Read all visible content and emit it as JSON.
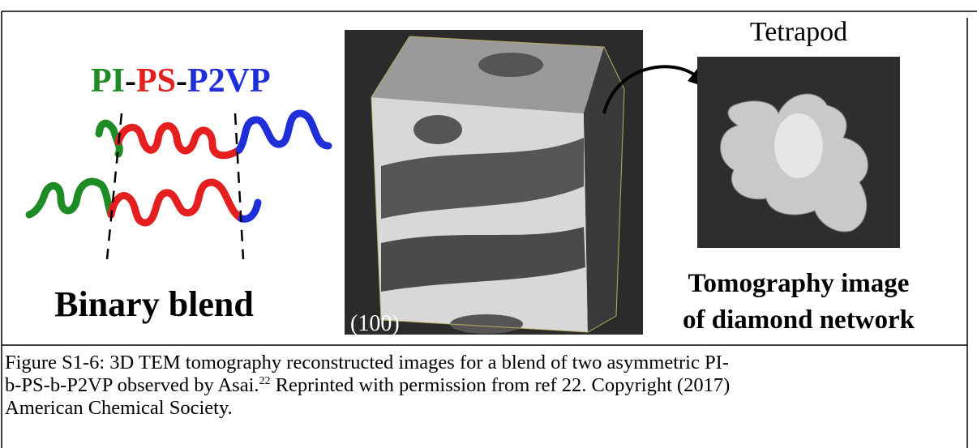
{
  "figure": {
    "polymer_label": {
      "pi": "PI",
      "dash1": "-",
      "ps": "PS",
      "dash2": "-",
      "p2vp": "P2VP"
    },
    "blend_label": "Binary blend",
    "plane_label": "(100)",
    "tetrapod_label": "Tetrapod",
    "tomography_label": {
      "line1": "Tomography image",
      "line2": "of diamond network"
    }
  },
  "caption": {
    "line1": "Figure S1-6: 3D TEM tomography reconstructed images for a blend of two asymmetric PI-",
    "line2_before": "b-PS-b-P2VP observed by Asai.",
    "superscript": "22",
    "line2_after": " Reprinted with permission from ref 22. Copyright (2017)",
    "line3": "American Chemical Society."
  }
}
